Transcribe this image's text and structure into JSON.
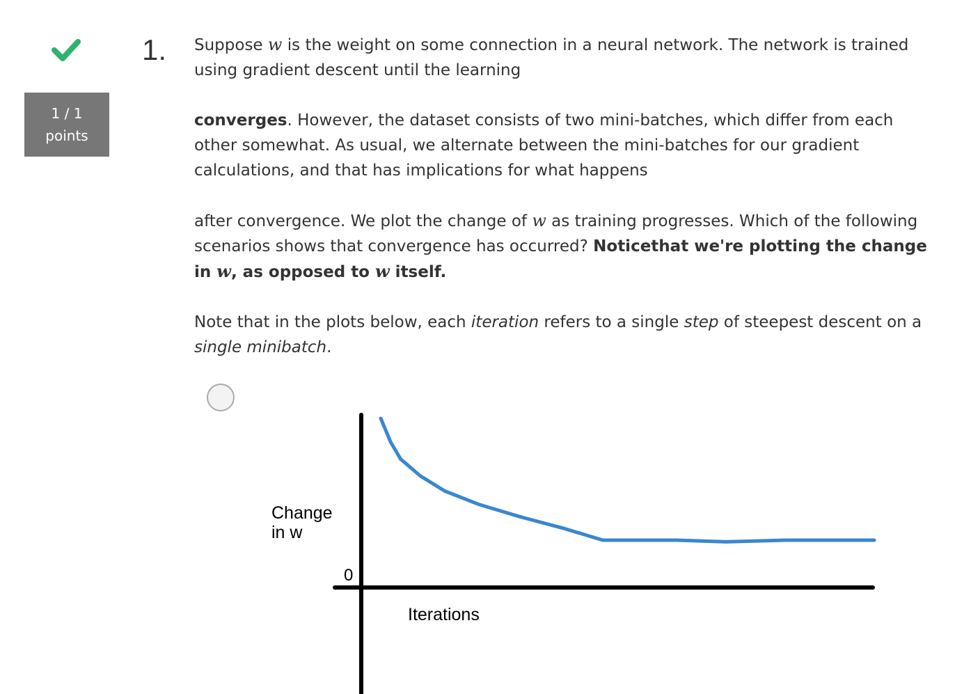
{
  "status": {
    "icon": "checkmark-icon",
    "color": "#2db36f"
  },
  "score": {
    "value": "1 / 1",
    "unit": "points"
  },
  "question": {
    "number": "1.",
    "p1": {
      "t1": "Suppose ",
      "var_w": "w",
      "t2": " is the weight on some connection in a neural network. The network is trained using gradient descent until the learning"
    },
    "p2": {
      "bold": "converges",
      "t1": ". However, the dataset consists of two mini-batches, which differ from each other somewhat. As usual, we alternate between the mini-batches for our gradient calculations, and that has implications for what happens"
    },
    "p3": {
      "t1": "after convergence. We plot the change of ",
      "var_w": "w",
      "t2": " as training progresses. Which of the following scenarios shows that convergence has occurred? ",
      "b1": "Noticethat we're plotting the change in ",
      "b_var_w1": "w",
      "b2": ", as opposed to ",
      "b_var_w2": "w",
      "b3": " itself."
    },
    "p4": {
      "t1": "Note that in the plots below, each ",
      "i1": "iteration",
      "t2": " refers to a single ",
      "i2": "step",
      "t3": " of steepest descent on a ",
      "i3": "single minibatch",
      "t4": "."
    }
  },
  "option": {
    "selected": false
  },
  "chart_data": {
    "type": "line",
    "ylabel_line1": "Change",
    "ylabel_line2": "in w",
    "xlabel": "Iterations",
    "zero_label": "0",
    "line_color": "#3a86d0",
    "series": [
      {
        "x": [
          0.0,
          0.02,
          0.04,
          0.08,
          0.13,
          0.2,
          0.28,
          0.37,
          0.45,
          0.6,
          0.7,
          0.82,
          0.92,
          1.0
        ],
        "values": [
          1.0,
          0.86,
          0.76,
          0.66,
          0.57,
          0.49,
          0.42,
          0.35,
          0.28,
          0.28,
          0.27,
          0.28,
          0.28,
          0.28
        ]
      }
    ]
  }
}
